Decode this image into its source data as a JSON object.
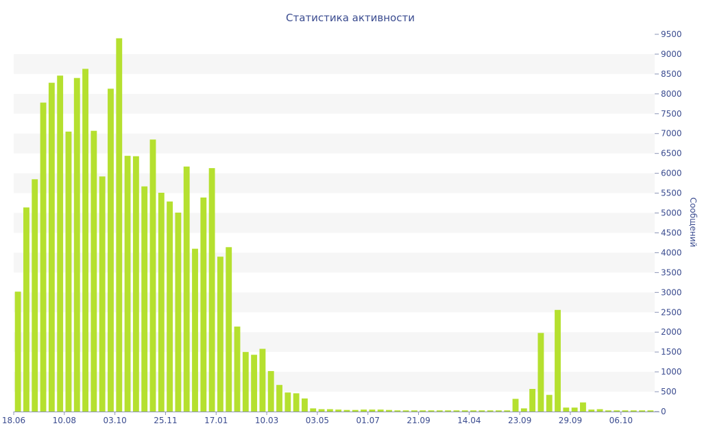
{
  "chart_data": {
    "type": "bar",
    "title": "Статистика активности",
    "ylabel": "Сообщений",
    "y_axis_position": "right",
    "ylim": [
      0,
      9500
    ],
    "ytick_step": 500,
    "grid": "alternating horizontal bands",
    "bar_color": "#b5e02f",
    "text_color": "#3a4b8f",
    "x_tick_labels": [
      {
        "label": "18.06",
        "index": 0
      },
      {
        "label": "10.08",
        "index": 6
      },
      {
        "label": "03.10",
        "index": 12
      },
      {
        "label": "25.11",
        "index": 18
      },
      {
        "label": "17.01",
        "index": 24
      },
      {
        "label": "10.03",
        "index": 30
      },
      {
        "label": "03.05",
        "index": 36
      },
      {
        "label": "01.07",
        "index": 42
      },
      {
        "label": "21.09",
        "index": 48
      },
      {
        "label": "14.04",
        "index": 54
      },
      {
        "label": "23.09",
        "index": 60
      },
      {
        "label": "29.09",
        "index": 66
      },
      {
        "label": "06.10",
        "index": 72
      }
    ],
    "values": [
      3020,
      5140,
      5850,
      7780,
      8280,
      8460,
      7050,
      8400,
      8630,
      7070,
      5920,
      8130,
      9400,
      6440,
      6430,
      5670,
      6850,
      5510,
      5290,
      5010,
      6170,
      4100,
      5390,
      6130,
      3900,
      4140,
      2140,
      1500,
      1430,
      1580,
      1020,
      670,
      480,
      460,
      330,
      80,
      60,
      60,
      50,
      40,
      40,
      50,
      50,
      50,
      40,
      30,
      30,
      30,
      30,
      30,
      30,
      30,
      30,
      30,
      30,
      30,
      30,
      30,
      30,
      320,
      80,
      570,
      1980,
      420,
      2560,
      100,
      100,
      230,
      50,
      60,
      30,
      30,
      30,
      30,
      30,
      30
    ]
  }
}
